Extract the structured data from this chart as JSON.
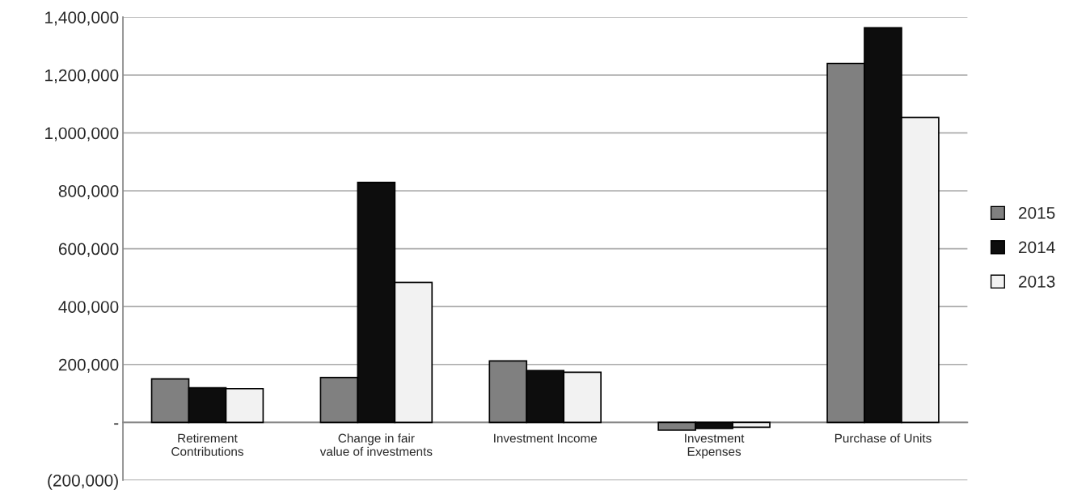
{
  "chart_data": {
    "type": "bar",
    "categories": [
      "Retirement\nContributions",
      "Change in fair\nvalue of investments",
      "Investment Income",
      "Investment\nExpenses",
      "Purchase of Units"
    ],
    "series": [
      {
        "name": "2015",
        "color": "#808080",
        "values": [
          150000,
          155000,
          212000,
          -27000,
          1240000
        ]
      },
      {
        "name": "2014",
        "color": "#0d0d0d",
        "values": [
          119000,
          829000,
          179000,
          -21000,
          1363000
        ]
      },
      {
        "name": "2013",
        "color": "#f2f2f2",
        "values": [
          116000,
          483000,
          173000,
          -17000,
          1053000
        ]
      }
    ],
    "ylim": [
      -200000,
      1400000
    ],
    "yticks": [
      {
        "value": -200000,
        "label": "(200,000)"
      },
      {
        "value": 0,
        "label": "-"
      },
      {
        "value": 200000,
        "label": "200,000"
      },
      {
        "value": 400000,
        "label": "400,000"
      },
      {
        "value": 600000,
        "label": "600,000"
      },
      {
        "value": 800000,
        "label": "800,000"
      },
      {
        "value": 1000000,
        "label": "1,000,000"
      },
      {
        "value": 1200000,
        "label": "1,200,000"
      },
      {
        "value": 1400000,
        "label": "1,400,000"
      }
    ],
    "grid": "y",
    "legend": "right"
  }
}
